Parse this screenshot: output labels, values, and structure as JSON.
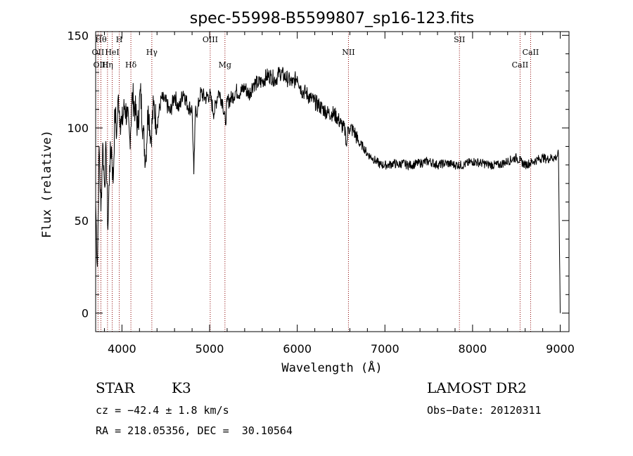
{
  "chart_data": {
    "type": "line",
    "title": "spec-55998-B5599807_sp16-123.fits",
    "xlabel": "Wavelength (Å)",
    "ylabel": "Flux (relative)",
    "xlim": [
      3700,
      9100
    ],
    "ylim": [
      -10,
      152
    ],
    "x_ticks": [
      4000,
      5000,
      6000,
      7000,
      8000,
      9000
    ],
    "y_ticks": [
      0,
      50,
      100,
      150
    ],
    "grid": false,
    "series": [
      {
        "x": [
          3700,
          3720,
          3740,
          3760,
          3780,
          3800,
          3820,
          3840,
          3860,
          3880,
          3900,
          3920,
          3940,
          3960,
          3980,
          4000,
          4030,
          4060,
          4090,
          4120,
          4150,
          4180,
          4210,
          4240,
          4270,
          4300,
          4330,
          4360,
          4400,
          4450,
          4500,
          4550,
          4600,
          4650,
          4700,
          4750,
          4800,
          4820,
          4840,
          4860,
          4880,
          4900,
          4950,
          5000,
          5050,
          5100,
          5150,
          5180,
          5200,
          5250,
          5300,
          5350,
          5400,
          5450,
          5500,
          5550,
          5600,
          5650,
          5700,
          5750,
          5800,
          5850,
          5900,
          5950,
          6000,
          6050,
          6100,
          6150,
          6200,
          6250,
          6300,
          6350,
          6400,
          6450,
          6500,
          6550,
          6563,
          6580,
          6600,
          6650,
          6700,
          6750,
          6800,
          6850,
          6900,
          6950,
          7000,
          7050,
          7100,
          7150,
          7200,
          7250,
          7300,
          7400,
          7500,
          7600,
          7700,
          7800,
          7900,
          8000,
          8100,
          8200,
          8300,
          8400,
          8500,
          8550,
          8600,
          8700,
          8800,
          8850,
          8900,
          8950,
          8980,
          9000
        ],
        "values": [
          60,
          25,
          90,
          55,
          92,
          70,
          88,
          45,
          80,
          90,
          70,
          110,
          96,
          118,
          105,
          102,
          112,
          106,
          94,
          118,
          110,
          100,
          120,
          100,
          82,
          112,
          94,
          112,
          102,
          116,
          114,
          108,
          118,
          110,
          120,
          112,
          110,
          75,
          112,
          108,
          115,
          119,
          116,
          118,
          108,
          120,
          114,
          102,
          114,
          116,
          120,
          119,
          122,
          118,
          124,
          124,
          125,
          128,
          128,
          126,
          130,
          128,
          126,
          124,
          128,
          120,
          119,
          116,
          114,
          112,
          110,
          108,
          108,
          106,
          102,
          98,
          90,
          100,
          100,
          98,
          92,
          90,
          86,
          84,
          82,
          80,
          80,
          80,
          81,
          80,
          81,
          80,
          80,
          81,
          82,
          80,
          81,
          80,
          80,
          82,
          81,
          80,
          80,
          82,
          84,
          82,
          80,
          82,
          84,
          83,
          84,
          84,
          86,
          0
        ]
      }
    ],
    "spectral_lines": [
      {
        "label": "Hθ",
        "x": 3760,
        "row": 1
      },
      {
        "label": "H",
        "x": 3969,
        "row": 1
      },
      {
        "label": "OII",
        "x": 3727,
        "row": 2
      },
      {
        "label": "HeI",
        "x": 3889,
        "row": 2
      },
      {
        "label": "OIII",
        "x": 3760,
        "row": 3
      },
      {
        "label": "Hη",
        "x": 3835,
        "row": 3
      },
      {
        "label": "Hδ",
        "x": 4102,
        "row": 3
      },
      {
        "label": "Hγ",
        "x": 4341,
        "row": 2
      },
      {
        "label": "OIII",
        "x": 5007,
        "row": 1
      },
      {
        "label": "Mg",
        "x": 5175,
        "row": 3
      },
      {
        "label": "NII",
        "x": 6584,
        "row": 2
      },
      {
        "label": "SII",
        "x": 7850,
        "row": 1
      },
      {
        "label": "CaII",
        "x": 8542,
        "row": 3
      },
      {
        "label": "CaII",
        "x": 8662,
        "row": 2
      }
    ],
    "line_color": "#8b0000",
    "spectrum_color": "#000000"
  },
  "info": {
    "object_class": "STAR",
    "subclass": "K3",
    "survey": "LAMOST DR2",
    "redshift": "cz = −42.4 ± 1.8 km/s",
    "obs_date": "Obs−Date: 20120311",
    "coords": "RA = 218.05356, DEC =  30.10564"
  }
}
